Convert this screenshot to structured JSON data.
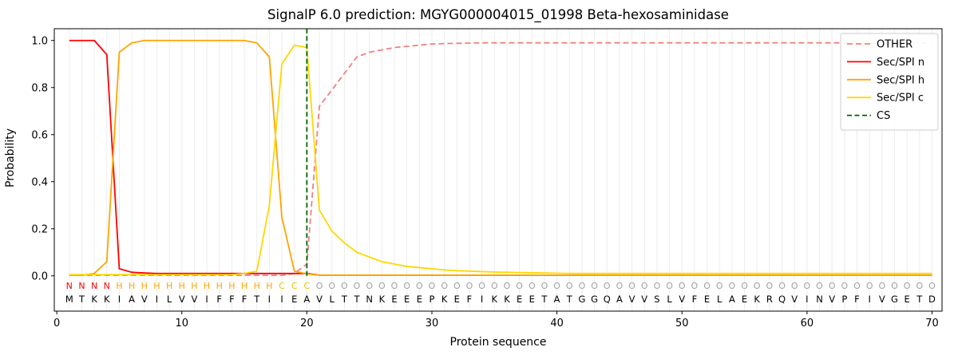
{
  "chart_data": {
    "type": "line",
    "title": "SignalP 6.0 prediction: MGYG000004015_01998 Beta-hexosaminidase",
    "xlabel": "Protein sequence",
    "ylabel": "Probability",
    "xlim": [
      -0.2,
      70.8
    ],
    "ylim": [
      -0.15,
      1.05
    ],
    "xticks": [
      0,
      10,
      20,
      30,
      40,
      50,
      60,
      70
    ],
    "yticks": [
      0.0,
      0.2,
      0.4,
      0.6,
      0.8,
      1.0
    ],
    "grid": "vertical-line-per-residue",
    "legend_position": "upper right",
    "sequence": "MTKKIAVILVVIFFFTIIEAVLTTNKEEEPKEFIKKEETATGGQAVVSLVFELAEKRQVINVPFIVGETD",
    "region_labels": "NNNNHHHHHHHHHHHHHCCCOOOOOOOOOOOOOOOOOOOOOOOOOOOOOOOOOOOOOOOOOOOOOOOOOO",
    "region_colors": {
      "N": "#ff0000",
      "H": "#ffa500",
      "C": "#f0c400",
      "O": "#a0a0a0"
    },
    "series": [
      {
        "name": "OTHER",
        "color": "#f08080",
        "dash": "7,4",
        "values": [
          0.002,
          0.002,
          0.002,
          0.002,
          0.002,
          0.002,
          0.002,
          0.002,
          0.002,
          0.002,
          0.002,
          0.002,
          0.002,
          0.002,
          0.002,
          0.002,
          0.002,
          0.002,
          0.01,
          0.05,
          0.72,
          0.79,
          0.86,
          0.93,
          0.95,
          0.96,
          0.97,
          0.975,
          0.98,
          0.985,
          0.987,
          0.988,
          0.989,
          0.99,
          0.99,
          0.99,
          0.99,
          0.99,
          0.99,
          0.99,
          0.99,
          0.99,
          0.99,
          0.99,
          0.99,
          0.99,
          0.99,
          0.99,
          0.99,
          0.99,
          0.99,
          0.99,
          0.99,
          0.99,
          0.99,
          0.99,
          0.99,
          0.99,
          0.99,
          0.99,
          0.99,
          0.99,
          0.99,
          0.99,
          0.99,
          0.99,
          0.99,
          0.99,
          0.99,
          0.99
        ]
      },
      {
        "name": "Sec/SPI n",
        "color": "#ff0000",
        "dash": null,
        "values": [
          1.0,
          1.0,
          1.0,
          0.94,
          0.03,
          0.015,
          0.012,
          0.01,
          0.01,
          0.01,
          0.01,
          0.01,
          0.01,
          0.01,
          0.01,
          0.01,
          0.01,
          0.01,
          0.01,
          0.01,
          0.003,
          0.003,
          0.003,
          0.003,
          0.003,
          0.003,
          0.003,
          0.003,
          0.003,
          0.003,
          0.003,
          0.003,
          0.003,
          0.003,
          0.003,
          0.003,
          0.003,
          0.003,
          0.003,
          0.003,
          0.003,
          0.003,
          0.003,
          0.003,
          0.003,
          0.003,
          0.003,
          0.003,
          0.003,
          0.003,
          0.003,
          0.003,
          0.003,
          0.003,
          0.003,
          0.003,
          0.003,
          0.003,
          0.003,
          0.003,
          0.003,
          0.003,
          0.003,
          0.003,
          0.003,
          0.003,
          0.003,
          0.003,
          0.003,
          0.003
        ]
      },
      {
        "name": "Sec/SPI h",
        "color": "#ffa500",
        "dash": null,
        "values": [
          0.002,
          0.002,
          0.01,
          0.06,
          0.95,
          0.99,
          1.0,
          1.0,
          1.0,
          1.0,
          1.0,
          1.0,
          1.0,
          1.0,
          1.0,
          0.99,
          0.93,
          0.25,
          0.02,
          0.008,
          0.003,
          0.003,
          0.003,
          0.003,
          0.003,
          0.003,
          0.003,
          0.003,
          0.003,
          0.003,
          0.003,
          0.003,
          0.003,
          0.003,
          0.003,
          0.003,
          0.003,
          0.003,
          0.003,
          0.003,
          0.003,
          0.003,
          0.003,
          0.003,
          0.003,
          0.003,
          0.003,
          0.003,
          0.003,
          0.003,
          0.003,
          0.003,
          0.003,
          0.003,
          0.003,
          0.003,
          0.003,
          0.003,
          0.003,
          0.003,
          0.003,
          0.003,
          0.003,
          0.003,
          0.003,
          0.003,
          0.003,
          0.003,
          0.003,
          0.003
        ]
      },
      {
        "name": "Sec/SPI c",
        "color": "#ffd700",
        "dash": null,
        "values": [
          0.005,
          0.005,
          0.005,
          0.005,
          0.005,
          0.005,
          0.005,
          0.005,
          0.005,
          0.005,
          0.005,
          0.005,
          0.005,
          0.005,
          0.01,
          0.02,
          0.3,
          0.9,
          0.98,
          0.97,
          0.28,
          0.19,
          0.14,
          0.1,
          0.08,
          0.06,
          0.05,
          0.04,
          0.035,
          0.03,
          0.025,
          0.022,
          0.02,
          0.018,
          0.016,
          0.015,
          0.014,
          0.013,
          0.012,
          0.011,
          0.01,
          0.01,
          0.01,
          0.01,
          0.01,
          0.01,
          0.01,
          0.01,
          0.01,
          0.01,
          0.01,
          0.01,
          0.01,
          0.01,
          0.01,
          0.01,
          0.01,
          0.01,
          0.01,
          0.01,
          0.01,
          0.01,
          0.01,
          0.01,
          0.01,
          0.01,
          0.01,
          0.01,
          0.01,
          0.01
        ]
      }
    ],
    "cs_line": {
      "name": "CS",
      "x": 20,
      "color": "#006400",
      "dash": "6,3.5"
    }
  }
}
